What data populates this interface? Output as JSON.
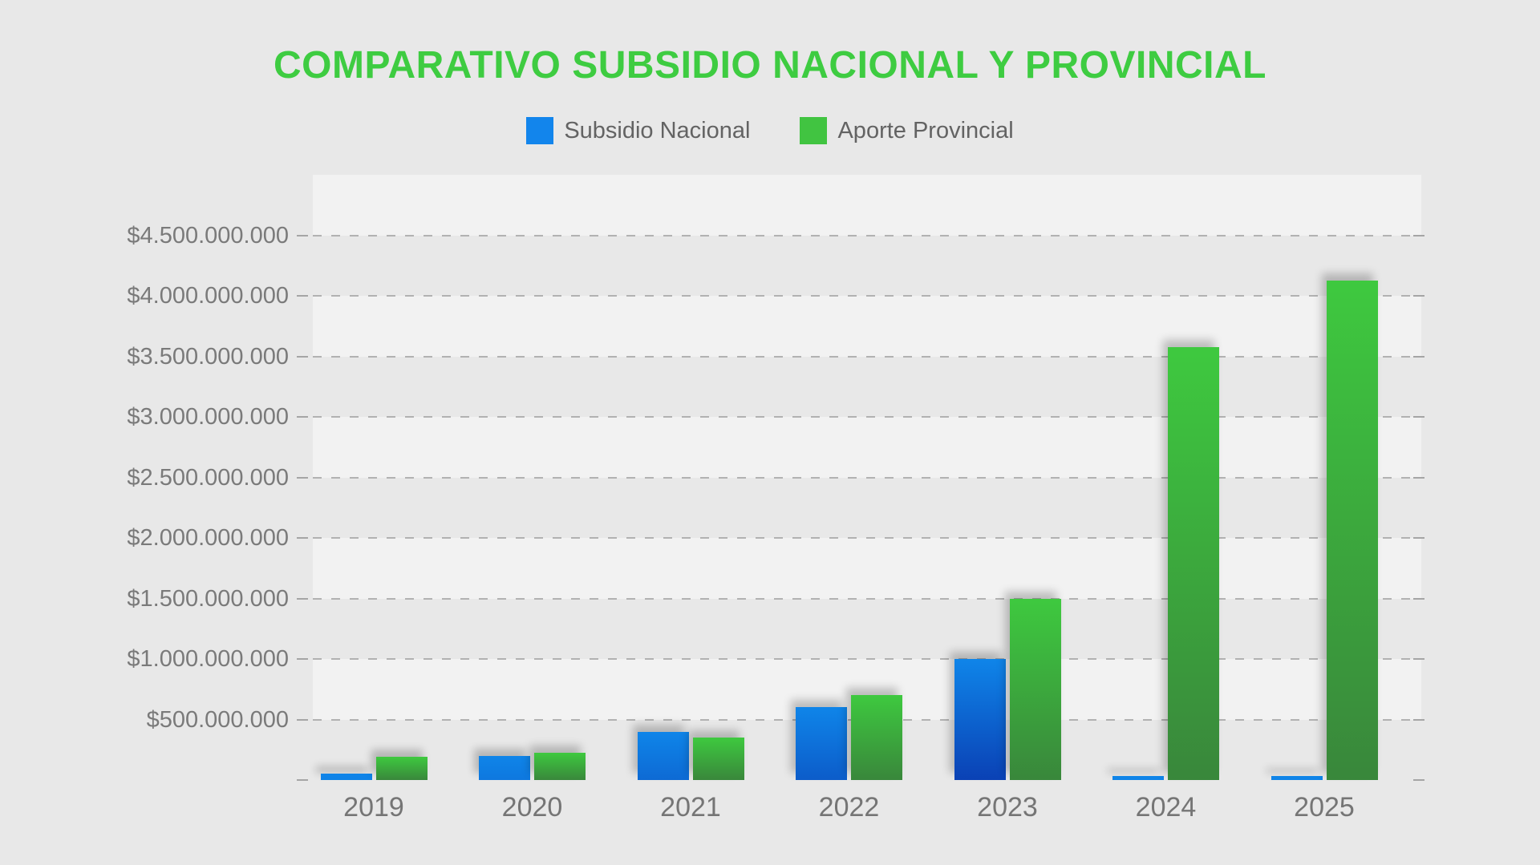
{
  "title": "COMPARATIVO SUBSIDIO NACIONAL Y PROVINCIAL",
  "legend": [
    {
      "label": "Subsidio Nacional",
      "color": "#1285ec"
    },
    {
      "label": "Aporte Provincial",
      "color": "#41c441"
    }
  ],
  "colors": {
    "background": "#e8e8e8",
    "stripe": "#f2f2f2",
    "title_green": "#3ecc41",
    "bar_blue_top": "#0f85e9",
    "bar_blue_bottom": "#0a3bb0",
    "bar_green_top": "#3ec93f",
    "bar_green_bottom": "#39873b",
    "gridline": "#9e9e9e",
    "axis_text": "#7a7a7a"
  },
  "chart_data": {
    "type": "bar",
    "title": "COMPARATIVO SUBSIDIO NACIONAL Y PROVINCIAL",
    "categories": [
      "2019",
      "2020",
      "2021",
      "2022",
      "2023",
      "2024",
      "2025"
    ],
    "series": [
      {
        "name": "Subsidio Nacional",
        "color": "#1285ec",
        "values": [
          50000000,
          200000000,
          400000000,
          600000000,
          1000000000,
          30000000,
          30000000
        ]
      },
      {
        "name": "Aporte Provincial",
        "color": "#41c441",
        "values": [
          195000000,
          225000000,
          350000000,
          700000000,
          1500000000,
          3575000000,
          4125000000
        ]
      }
    ],
    "xlabel": "",
    "ylabel": "",
    "y_axis": {
      "min": 0,
      "max": 5000000000,
      "step": 500000000,
      "tick_values": [
        500000000,
        1000000000,
        1500000000,
        2000000000,
        2500000000,
        3000000000,
        3500000000,
        4000000000,
        4500000000
      ],
      "tick_labels": [
        "$500.000.000",
        "$1.000.000.000",
        "$1.500.000.000",
        "$2.000.000.000",
        "$2.500.000.000",
        "$3.000.000.000",
        "$3.500.000.000",
        "$4.000.000.000",
        "$4.500.000.000"
      ]
    },
    "grid": {
      "horizontal": true,
      "style": "dashed",
      "alternating_bands": true
    },
    "legend_position": "top"
  }
}
